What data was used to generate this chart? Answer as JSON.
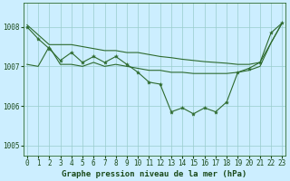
{
  "title": "Graphe pression niveau de la mer (hPa)",
  "x_labels": [
    "0",
    "1",
    "2",
    "3",
    "4",
    "5",
    "6",
    "7",
    "8",
    "9",
    "10",
    "11",
    "12",
    "13",
    "14",
    "15",
    "16",
    "17",
    "18",
    "19",
    "20",
    "21",
    "22",
    "23"
  ],
  "x_values": [
    0,
    1,
    2,
    3,
    4,
    5,
    6,
    7,
    8,
    9,
    10,
    11,
    12,
    13,
    14,
    15,
    16,
    17,
    18,
    19,
    20,
    21,
    22,
    23
  ],
  "main_line": [
    1008.0,
    1007.7,
    1007.45,
    1007.15,
    1007.35,
    1007.1,
    1007.25,
    1007.1,
    1007.25,
    1007.05,
    1006.85,
    1006.6,
    1006.55,
    1005.85,
    1005.95,
    1005.8,
    1005.95,
    1005.85,
    1006.1,
    1006.85,
    1006.95,
    1007.1,
    1007.85,
    1008.1
  ],
  "upper_line": [
    1008.05,
    1007.8,
    1007.55,
    1007.55,
    1007.55,
    1007.5,
    1007.45,
    1007.4,
    1007.4,
    1007.35,
    1007.35,
    1007.3,
    1007.25,
    1007.22,
    1007.18,
    1007.15,
    1007.12,
    1007.1,
    1007.08,
    1007.05,
    1007.05,
    1007.1,
    1007.6,
    1008.1
  ],
  "lower_line": [
    1007.05,
    1007.0,
    1007.5,
    1007.05,
    1007.05,
    1007.0,
    1007.1,
    1007.0,
    1007.05,
    1007.0,
    1006.95,
    1006.9,
    1006.9,
    1006.85,
    1006.85,
    1006.82,
    1006.82,
    1006.82,
    1006.82,
    1006.85,
    1006.9,
    1007.0,
    1007.6,
    1008.1
  ],
  "ylim_min": 1004.75,
  "ylim_max": 1008.6,
  "yticks": [
    1005,
    1006,
    1007,
    1008
  ],
  "line_color": "#2d6a2d",
  "marker_color": "#2d6a2d",
  "bg_color": "#cceeff",
  "grid_color": "#99cccc",
  "title_color": "#1a4a1a",
  "tick_color": "#1a4a1a",
  "title_fontsize": 6.5,
  "tick_fontsize": 5.5,
  "fig_width": 3.2,
  "fig_height": 2.0,
  "dpi": 100
}
